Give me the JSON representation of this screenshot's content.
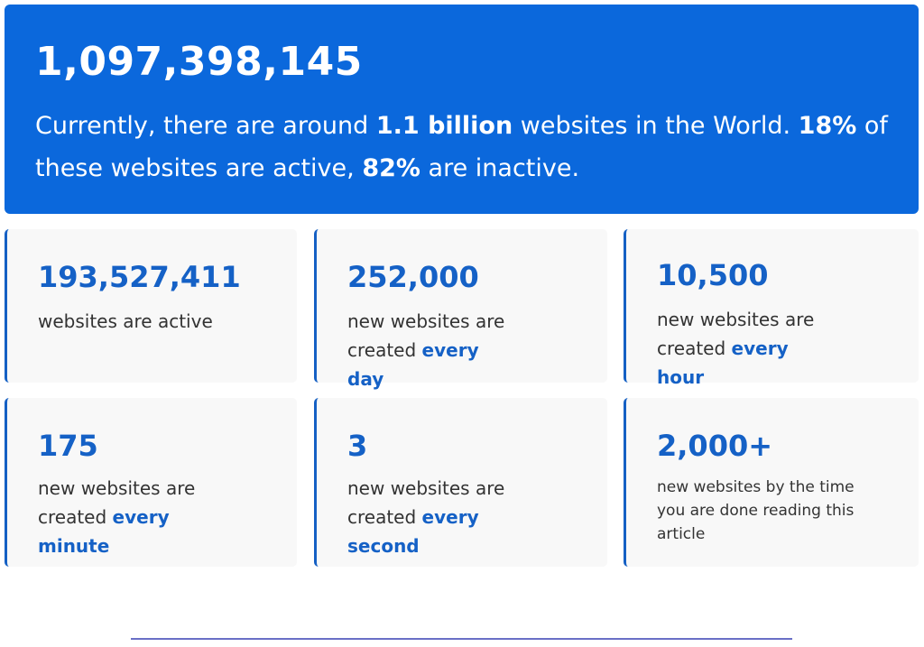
{
  "hero": {
    "number": "1,097,398,145",
    "text_part1": "Currently, there are around ",
    "text_bold1": "1.1 billion",
    "text_part2": " websites in the World. ",
    "text_bold2": "18%",
    "text_part3": " of these websites are active, ",
    "text_bold3": "82%",
    "text_part4": " are inactive."
  },
  "stats": [
    {
      "number": "193,527,411",
      "desc": "websites are active"
    },
    {
      "number": "252,000",
      "desc_prefix": "new websites are created ",
      "desc_highlight": "every day"
    },
    {
      "number": "10,500",
      "desc_prefix": "new websites are created ",
      "desc_highlight": "every hour"
    },
    {
      "number": "175",
      "desc_prefix": "new websites are created ",
      "desc_highlight": "every minute"
    },
    {
      "number": "3",
      "desc_prefix": "new websites are created ",
      "desc_highlight": "every second"
    },
    {
      "number": "2,000+",
      "desc": "new websites by the time you are done reading this article"
    }
  ],
  "colors": {
    "hero_background": "#0b68dc",
    "accent": "#1561c6",
    "card_background": "#f8f8f8",
    "divider": "#6a6fc6"
  }
}
